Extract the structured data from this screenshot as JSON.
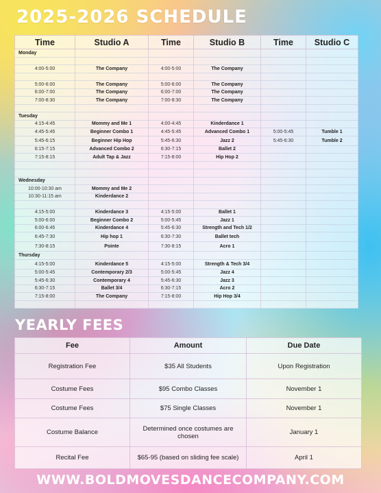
{
  "title": "2025-2026 SCHEDULE",
  "schedule": {
    "headers": [
      "Time",
      "Studio A",
      "Time",
      "Studio B",
      "Time",
      "Studio C"
    ],
    "rows": [
      {
        "type": "day",
        "label": "Monday"
      },
      {
        "type": "gap"
      },
      {
        "type": "cls",
        "cells": [
          "4:00-5:00",
          "The Company",
          "4:00-5:00",
          "The Company",
          "",
          ""
        ]
      },
      {
        "type": "gap"
      },
      {
        "type": "cls",
        "cells": [
          "5:00-6:00",
          "The Company",
          "5:00-6:00",
          "The Company",
          "",
          ""
        ]
      },
      {
        "type": "cls",
        "cells": [
          "6:00-7:00",
          "The Company",
          "6:00-7:00",
          "The Company",
          "",
          ""
        ]
      },
      {
        "type": "cls",
        "cells": [
          "7:00-8:30",
          "The Company",
          "7:00-8:30",
          "The Company",
          "",
          ""
        ]
      },
      {
        "type": "gap"
      },
      {
        "type": "day",
        "label": "Tuesday"
      },
      {
        "type": "cls",
        "cells": [
          "4:15-4:45",
          "Mommy and Me 1",
          "4:00-4:45",
          "Kinderdance 1",
          "",
          ""
        ]
      },
      {
        "type": "cls",
        "cells": [
          "4:45-5:45",
          "Beginner Combo 1",
          "4:45-5:45",
          "Advanced Combo 1",
          "5:00-5:45",
          "Tumble 1"
        ]
      },
      {
        "type": "cls",
        "tall": true,
        "cells": [
          "5:45-6:15",
          "Beginner Hip Hop",
          "5:45-6:30",
          "Jazz 2",
          "5:45-6:30",
          "Tumble 2"
        ]
      },
      {
        "type": "cls",
        "cells": [
          "6:15-7:15",
          "Advanced Combo 2",
          "6:30-7:15",
          "Ballet 2",
          "",
          ""
        ]
      },
      {
        "type": "cls",
        "cells": [
          "7:15-8:15",
          "Adult Tap & Jazz",
          "7:15-8:00",
          "Hip Hop 2",
          "",
          ""
        ]
      },
      {
        "type": "gap"
      },
      {
        "type": "gap"
      },
      {
        "type": "day",
        "label": "Wednesday"
      },
      {
        "type": "cls",
        "cells": [
          "10:00-10:30 am",
          "Mommy and Me  2",
          "",
          "",
          "",
          ""
        ]
      },
      {
        "type": "cls",
        "cells": [
          "10:30-11:15 am",
          "Kinderdance 2",
          "",
          "",
          "",
          ""
        ]
      },
      {
        "type": "gap"
      },
      {
        "type": "cls",
        "cells": [
          "4:15-5:00",
          "Kinderdance 3",
          "4:15-5:00",
          "Ballet 1",
          "",
          ""
        ]
      },
      {
        "type": "cls",
        "cells": [
          "5:00-6:00",
          "Beginner Combo 2",
          "5:00-5:45",
          "Jazz 1",
          "",
          ""
        ]
      },
      {
        "type": "cls",
        "cells": [
          "6:00-6:45",
          "Kinderdance 4",
          "5:45-6:30",
          "Strength and Tech 1/2",
          "",
          ""
        ]
      },
      {
        "type": "cls",
        "tall": true,
        "cells": [
          "6:45-7:30",
          "Hip hop 1",
          "6:30-7:30",
          "Ballet tech",
          "",
          ""
        ]
      },
      {
        "type": "cls",
        "tall": true,
        "cells": [
          "7:30-8:15",
          "Pointe",
          "7:30-8:15",
          "Acro 1",
          "",
          ""
        ]
      },
      {
        "type": "day",
        "label": "Thursday"
      },
      {
        "type": "cls",
        "tall": true,
        "cells": [
          "4:15-5:00",
          "Kinderdance 5",
          "4:15-5:00",
          "Strength & Tech 3/4",
          "",
          ""
        ]
      },
      {
        "type": "cls",
        "cells": [
          "5:00-5:45",
          "Contemporary 2/3",
          "5:00-5:45",
          "Jazz 4",
          "",
          ""
        ]
      },
      {
        "type": "cls",
        "cells": [
          "5:45-6:30",
          "Contemporary 4",
          "5:45-6:30",
          "Jazz 3",
          "",
          ""
        ]
      },
      {
        "type": "cls",
        "cells": [
          "6:30-7:15",
          "Ballet 3/4",
          "6:30-7:15",
          "Acro 2",
          "",
          ""
        ]
      },
      {
        "type": "cls",
        "cells": [
          "7:15-8:00",
          "The Company",
          "7:15-8:00",
          "Hip Hop 3/4",
          "",
          ""
        ]
      },
      {
        "type": "gap"
      }
    ]
  },
  "fees": {
    "title": "YEARLY FEES",
    "headers": [
      "Fee",
      "Amount",
      "Due Date"
    ],
    "rows": [
      [
        "Registration Fee",
        "$35 All Students",
        "Upon Registration"
      ],
      [
        "Costume Fees",
        "$95 Combo Classes",
        "November 1"
      ],
      [
        "Costume Fees",
        "$75 Single Classes",
        "November 1"
      ],
      [
        "Costume Balance",
        "Determined once costumes are chosen",
        "January 1"
      ],
      [
        "Recital Fee",
        "$65-95 (based on sliding fee scale)",
        "April 1"
      ]
    ]
  },
  "footer": "WWW.BOLDMOVESDANCECOMPANY.COM"
}
